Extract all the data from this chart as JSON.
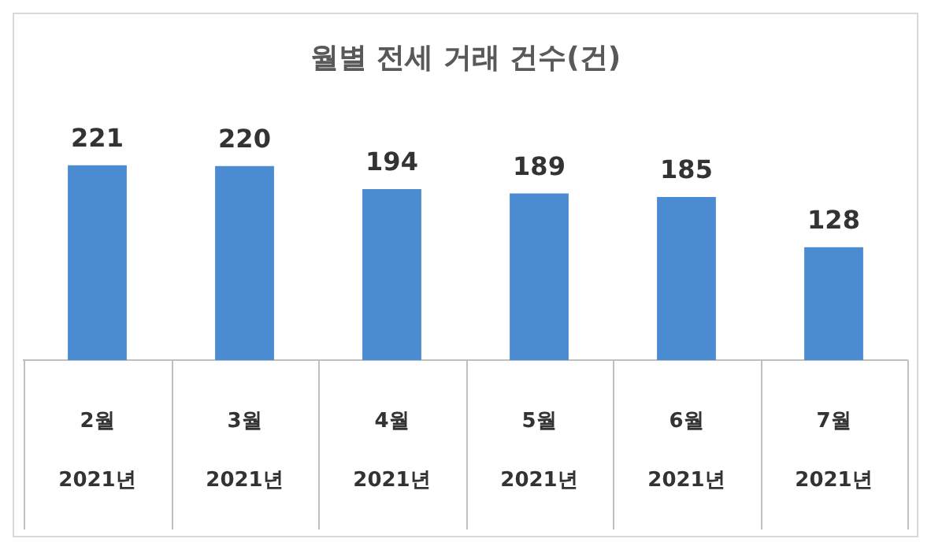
{
  "chart_data": {
    "type": "bar",
    "title": "월별 전세 거래 건수(건)",
    "categories": [
      "2월\n2021년",
      "3월\n2021년",
      "4월\n2021년",
      "5월\n2021년",
      "6월\n2021년",
      "7월\n2021년"
    ],
    "values": [
      221,
      220,
      194,
      189,
      185,
      128
    ],
    "color": "#4a8bd2",
    "data_labels": true
  }
}
